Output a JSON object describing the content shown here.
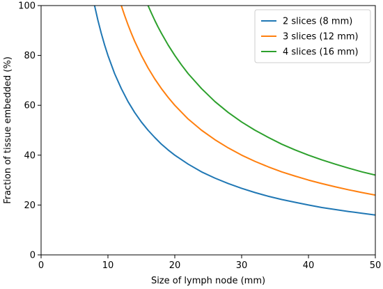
{
  "chart_data": {
    "type": "line",
    "xlabel": "Size of lymph node (mm)",
    "ylabel": "Fraction of tissue embedded (%)",
    "xlim": [
      0,
      50
    ],
    "ylim": [
      0,
      100
    ],
    "xticks": [
      0,
      10,
      20,
      30,
      40,
      50
    ],
    "yticks": [
      0,
      20,
      40,
      60,
      80,
      100
    ],
    "grid": false,
    "legend_position": "top-right",
    "series": [
      {
        "name": "2 slices (8 mm)",
        "color": "#1f77b4",
        "x": [
          8,
          8.5,
          9,
          9.5,
          10,
          11,
          12,
          13,
          14,
          15,
          16,
          17,
          18,
          19,
          20,
          22,
          24,
          26,
          28,
          30,
          32,
          34,
          36,
          38,
          40,
          42,
          44,
          46,
          48,
          50
        ],
        "y": [
          100,
          94.1,
          88.9,
          84.2,
          80,
          72.7,
          66.7,
          61.5,
          57.1,
          53.3,
          50,
          47.1,
          44.4,
          42.1,
          40,
          36.4,
          33.3,
          30.8,
          28.6,
          26.7,
          25,
          23.5,
          22.2,
          21.1,
          20,
          19,
          18.2,
          17.4,
          16.7,
          16
        ]
      },
      {
        "name": "3 slices (12 mm)",
        "color": "#ff7f0e",
        "x": [
          12,
          12.5,
          13,
          13.5,
          14,
          15,
          16,
          17,
          18,
          19,
          20,
          22,
          24,
          26,
          28,
          30,
          32,
          34,
          36,
          38,
          40,
          42,
          44,
          46,
          48,
          50
        ],
        "y": [
          100,
          96,
          92.3,
          88.9,
          85.7,
          80,
          75,
          70.6,
          66.7,
          63.2,
          60,
          54.5,
          50,
          46.2,
          42.9,
          40,
          37.5,
          35.3,
          33.3,
          31.6,
          30,
          28.6,
          27.3,
          26.1,
          25,
          24
        ]
      },
      {
        "name": "4 slices (16 mm)",
        "color": "#2ca02c",
        "x": [
          16,
          16.5,
          17,
          17.5,
          18,
          19,
          20,
          21,
          22,
          24,
          26,
          28,
          30,
          32,
          34,
          36,
          38,
          40,
          42,
          44,
          46,
          48,
          50
        ],
        "y": [
          100,
          97,
          94.1,
          91.4,
          88.9,
          84.2,
          80,
          76.2,
          72.7,
          66.7,
          61.5,
          57.1,
          53.3,
          50,
          47.1,
          44.4,
          42.1,
          40,
          38.1,
          36.4,
          34.8,
          33.3,
          32
        ]
      }
    ]
  }
}
